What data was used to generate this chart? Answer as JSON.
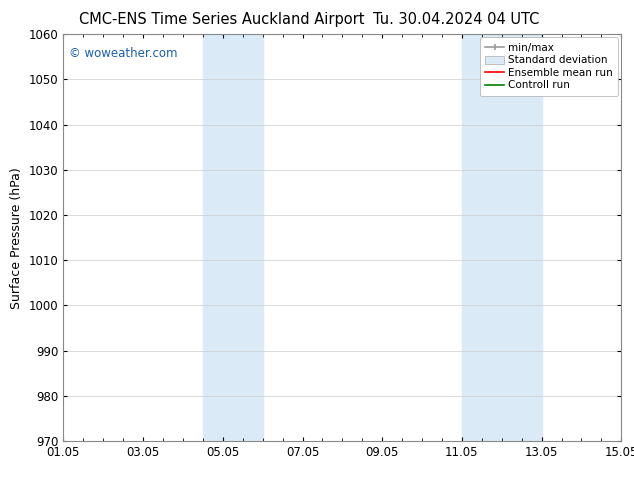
{
  "title_left": "CMC-ENS Time Series Auckland Airport",
  "title_right": "Tu. 30.04.2024 04 UTC",
  "ylabel": "Surface Pressure (hPa)",
  "ylim": [
    970,
    1060
  ],
  "yticks": [
    970,
    980,
    990,
    1000,
    1010,
    1020,
    1030,
    1040,
    1050,
    1060
  ],
  "xtick_labels": [
    "01.05",
    "03.05",
    "05.05",
    "07.05",
    "09.05",
    "11.05",
    "13.05",
    "15.05"
  ],
  "xtick_positions": [
    0,
    2,
    4,
    6,
    8,
    10,
    12,
    14
  ],
  "xlim": [
    0,
    14
  ],
  "shaded_bands": [
    {
      "x_start": 3.5,
      "x_end": 5.0
    },
    {
      "x_start": 10.0,
      "x_end": 12.0
    }
  ],
  "shaded_color": "#daeaf7",
  "watermark_text": "© woweather.com",
  "watermark_color": "#1a5faa",
  "background_color": "#ffffff",
  "legend_labels": [
    "min/max",
    "Standard deviation",
    "Ensemble mean run",
    "Controll run"
  ],
  "legend_colors": [
    "#aaaaaa",
    "#daeaf7",
    "red",
    "green"
  ],
  "title_fontsize": 10.5,
  "axis_label_fontsize": 9,
  "tick_fontsize": 8.5,
  "legend_fontsize": 7.5,
  "grid_color": "#cccccc",
  "grid_linewidth": 0.5,
  "spine_color": "#888888"
}
